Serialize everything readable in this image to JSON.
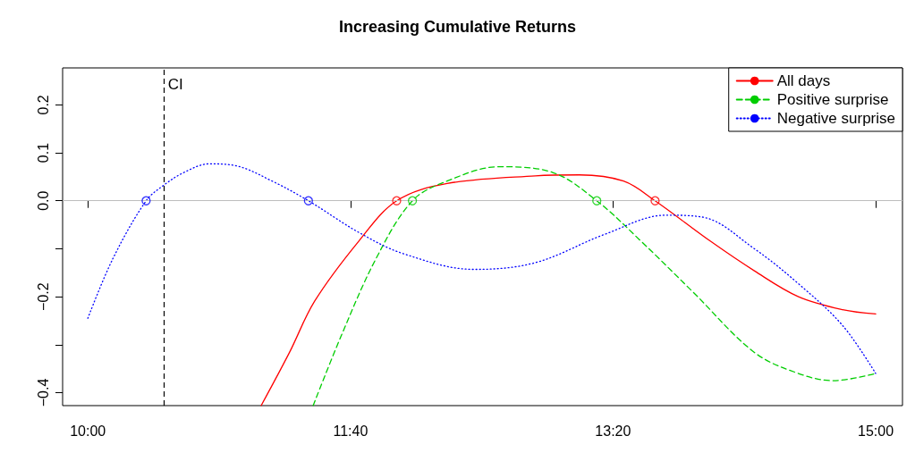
{
  "chart_data": {
    "type": "line",
    "title": "Increasing Cumulative Returns",
    "xlim": [
      9.84,
      15.17
    ],
    "ylim": [
      -0.427,
      0.277
    ],
    "xticks": [
      {
        "value": 10,
        "label": "10:00"
      },
      {
        "value": 11.667,
        "label": "11:40"
      },
      {
        "value": 13.333,
        "label": "13:20"
      },
      {
        "value": 15,
        "label": "15:00"
      }
    ],
    "yticks": [
      {
        "value": -0.4,
        "label": "−0.4"
      },
      {
        "value": -0.3,
        "label": null
      },
      {
        "value": -0.2,
        "label": "−0.2"
      },
      {
        "value": -0.1,
        "label": null
      },
      {
        "value": 0,
        "label": "0.0"
      },
      0.1,
      0.2
    ],
    "grid": false,
    "legend": "top right",
    "marker": "none",
    "ref_lines": [
      {
        "axis": "x",
        "value": 10.48,
        "label": "CI",
        "color": "#000000",
        "line_style": "dashed"
      },
      {
        "axis": "y",
        "value": 0,
        "label": null,
        "color": "#bebebe",
        "line_style": "solid"
      }
    ],
    "series": [
      {
        "name": "All days",
        "color": "#ff0000",
        "line_style": "solid",
        "x": [
          11.1,
          11.28,
          11.44,
          11.72,
          11.96,
          12.28,
          12.84,
          13.12,
          13.4,
          13.6,
          13.95,
          14.23,
          14.51,
          14.79,
          15
        ],
        "values": [
          -0.427,
          -0.316,
          -0.209,
          -0.084,
          0,
          0.036,
          0.052,
          0.054,
          0.041,
          0,
          -0.084,
          -0.146,
          -0.2,
          -0.227,
          -0.236
        ]
      },
      {
        "name": "Positive surprise",
        "color": "#00cd00",
        "line_style": "dashed",
        "x": [
          11.43,
          11.61,
          11.83,
          12.06,
          12.28,
          12.61,
          12.95,
          13.23,
          13.51,
          13.84,
          14.23,
          14.51,
          14.73,
          15
        ],
        "values": [
          -0.427,
          -0.28,
          -0.12,
          0,
          0.041,
          0.071,
          0.059,
          0,
          -0.084,
          -0.19,
          -0.316,
          -0.36,
          -0.375,
          -0.36
        ]
      },
      {
        "name": "Negative surprise",
        "color": "#0000ff",
        "line_style": "dotted",
        "x": [
          10,
          10.16,
          10.37,
          10.48,
          10.61,
          10.77,
          10.94,
          11.17,
          11.4,
          11.72,
          12.0,
          12.45,
          12.84,
          13.28,
          13.67,
          13.9,
          14.23,
          14.51,
          14.79,
          15
        ],
        "values": [
          -0.245,
          -0.12,
          0,
          0.032,
          0.059,
          0.077,
          0.073,
          0.041,
          0,
          -0.066,
          -0.11,
          -0.143,
          -0.129,
          -0.07,
          -0.03,
          -0.034,
          -0.1,
          -0.173,
          -0.26,
          -0.36
        ]
      },
      {
        "type": "scatter",
        "marker": "circle",
        "color": "#ff0000",
        "x": [
          11.96,
          13.6
        ],
        "values": [
          0,
          0
        ]
      },
      {
        "type": "scatter",
        "marker": "circle",
        "color": "#00cd00",
        "x": [
          12.06,
          13.23
        ],
        "values": [
          0,
          0
        ]
      },
      {
        "type": "scatter",
        "marker": "circle",
        "color": "#0000ff",
        "x": [
          10.37,
          11.4
        ],
        "values": [
          0,
          0
        ]
      }
    ]
  }
}
